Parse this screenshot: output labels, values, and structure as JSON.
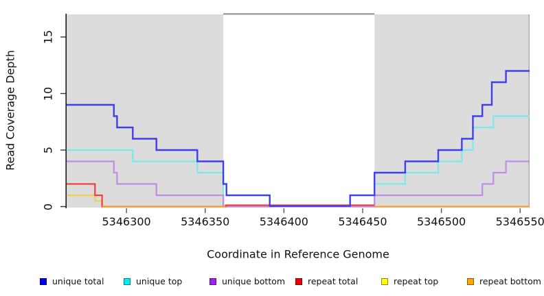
{
  "chart_data": {
    "type": "line",
    "subtype": "step",
    "title": "",
    "xlabel": "Coordinate in Reference Genome",
    "ylabel": "Read Coverage Depth",
    "x_ticks": [
      5346300,
      5346350,
      5346400,
      5346450,
      5346500,
      5346550
    ],
    "y_ticks": [
      0,
      5,
      10,
      15
    ],
    "xlim": [
      5346262,
      5346556
    ],
    "ylim": [
      0,
      17.1
    ],
    "grid": false,
    "legend_position": "bottom",
    "background_color": "#ffffff",
    "shaded_region_color": "#dcdcdc",
    "shaded_regions": [
      {
        "x0": 5346262,
        "x1": 5346361.5
      },
      {
        "x0": 5346457.5,
        "x1": 5346556
      }
    ],
    "gap_bridge_line": {
      "x0": 5346361.5,
      "x1": 5346457.5,
      "color": "#8c8c8c"
    },
    "draw_order": [
      "unique top",
      "repeat top",
      "unique bottom",
      "repeat total",
      "unique total",
      "repeat bottom"
    ],
    "series": [
      {
        "name": "unique total",
        "line_color": "#3e3eea",
        "legend_color": "#0000ee",
        "width": 2.4,
        "segments": [
          {
            "steps": [
              [
                5346262,
                9
              ],
              [
                5346292,
                8
              ],
              [
                5346294,
                7
              ],
              [
                5346304,
                6
              ],
              [
                5346319,
                5
              ],
              [
                5346345,
                4
              ],
              [
                5346361.5,
                2
              ],
              [
                5346363.5,
                1
              ],
              [
                5346391,
                0.05
              ],
              [
                5346442,
                1
              ],
              [
                5346457.5,
                3
              ],
              [
                5346477,
                4
              ],
              [
                5346498,
                5
              ],
              [
                5346513,
                6
              ],
              [
                5346520,
                8
              ],
              [
                5346526,
                9
              ],
              [
                5346532,
                11
              ],
              [
                5346541,
                12
              ]
            ],
            "end": 5346556
          }
        ]
      },
      {
        "name": "unique top",
        "line_color": "#7ae9e9",
        "legend_color": "#00eeee",
        "width": 2.2,
        "segments": [
          {
            "steps": [
              [
                5346262,
                5
              ],
              [
                5346304,
                4
              ],
              [
                5346345,
                3
              ],
              [
                5346361.5,
                0
              ],
              [
                5346457.5,
                2
              ],
              [
                5346477,
                3
              ],
              [
                5346498,
                4
              ],
              [
                5346513,
                5
              ],
              [
                5346520,
                7
              ],
              [
                5346533,
                8
              ]
            ],
            "end": 5346556
          }
        ]
      },
      {
        "name": "unique bottom",
        "line_color": "#c38ce2",
        "legend_color": "#a020f0",
        "width": 2.2,
        "segments": [
          {
            "steps": [
              [
                5346262,
                4
              ],
              [
                5346292,
                3
              ],
              [
                5346294,
                2
              ],
              [
                5346319,
                1
              ],
              [
                5346361.5,
                0
              ],
              [
                5346457.5,
                1
              ],
              [
                5346526,
                2
              ],
              [
                5346533,
                3
              ],
              [
                5346541,
                4
              ]
            ],
            "end": 5346556
          }
        ]
      },
      {
        "name": "repeat total",
        "line_color": "#ee4040",
        "legend_color": "#ee0000",
        "width": 2.2,
        "segments": [
          {
            "steps": [
              [
                5346262,
                2
              ],
              [
                5346280,
                1
              ],
              [
                5346284.5,
                0
              ],
              [
                5346363,
                0.12
              ]
            ],
            "end": 5346457.5
          }
        ]
      },
      {
        "name": "repeat top",
        "line_color": "#efcf50",
        "legend_color": "#ffff00",
        "width": 2.2,
        "segments": [
          {
            "steps": [
              [
                5346262,
                1
              ],
              [
                5346280,
                0.5
              ],
              [
                5346284.5,
                0
              ]
            ],
            "end": 5346289
          }
        ]
      },
      {
        "name": "repeat bottom",
        "line_color": "#ff9f2d",
        "legend_color": "#ffa500",
        "width": 2.2,
        "segments": [
          {
            "steps": [
              [
                5346284.5,
                0
              ]
            ],
            "end": 5346363
          },
          {
            "steps": [
              [
                5346457.5,
                0
              ]
            ],
            "end": 5346556
          }
        ]
      }
    ]
  }
}
